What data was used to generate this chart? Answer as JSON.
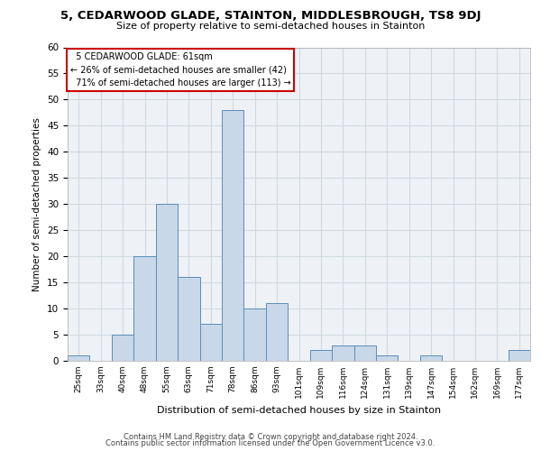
{
  "title": "5, CEDARWOOD GLADE, STAINTON, MIDDLESBROUGH, TS8 9DJ",
  "subtitle": "Size of property relative to semi-detached houses in Stainton",
  "xlabel": "Distribution of semi-detached houses by size in Stainton",
  "ylabel": "Number of semi-detached properties",
  "categories": [
    "25sqm",
    "33sqm",
    "40sqm",
    "48sqm",
    "55sqm",
    "63sqm",
    "71sqm",
    "78sqm",
    "86sqm",
    "93sqm",
    "101sqm",
    "109sqm",
    "116sqm",
    "124sqm",
    "131sqm",
    "139sqm",
    "147sqm",
    "154sqm",
    "162sqm",
    "169sqm",
    "177sqm"
  ],
  "values": [
    1,
    0,
    5,
    20,
    30,
    16,
    7,
    48,
    10,
    11,
    0,
    2,
    3,
    3,
    1,
    0,
    1,
    0,
    0,
    0,
    2
  ],
  "bar_color": "#c8d8e8",
  "bar_edge_color": "#5b8db8",
  "property_label": "5 CEDARWOOD GLADE: 61sqm",
  "pct_smaller": "26% of semi-detached houses are smaller (42)",
  "pct_larger": "71% of semi-detached houses are larger (113)",
  "annotation_box_color": "#cc0000",
  "ylim": [
    0,
    60
  ],
  "yticks": [
    0,
    5,
    10,
    15,
    20,
    25,
    30,
    35,
    40,
    45,
    50,
    55,
    60
  ],
  "grid_color": "#d0d8e0",
  "background_color": "#eef2f7",
  "footer1": "Contains HM Land Registry data © Crown copyright and database right 2024.",
  "footer2": "Contains public sector information licensed under the Open Government Licence v3.0."
}
